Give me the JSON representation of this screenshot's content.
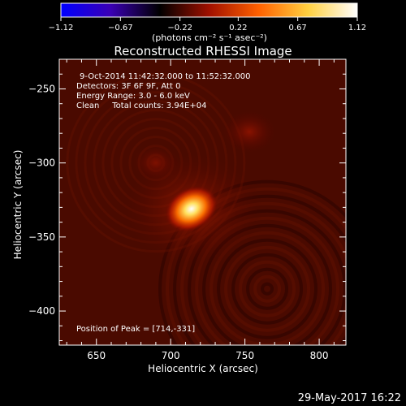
{
  "chart_data": {
    "type": "heatmap",
    "title": "Reconstructed RHESSI Image",
    "xlabel": "Heliocentric X (arcsec)",
    "ylabel": "Heliocentric Y (arcsec)",
    "xlim": [
      625,
      818
    ],
    "ylim": [
      -423,
      -230
    ],
    "xticks": [
      650,
      700,
      750,
      800
    ],
    "yticks": [
      -250,
      -300,
      -350,
      -400
    ],
    "colorbar": {
      "unit_label": "(photons cm⁻² s⁻¹ asec⁻²)",
      "range": [
        -1.12,
        1.12
      ],
      "ticks": [
        "-1.12",
        "-0.67",
        "-0.22",
        "0.22",
        "0.67",
        "1.12"
      ],
      "colors": [
        "#0000ff",
        "#3a00b5",
        "#000000",
        "#a01000",
        "#ff6000",
        "#ffd040",
        "#ffffff"
      ]
    },
    "annotations": [
      "9-Oct-2014 11:42:32.000 to 11:52:32.000",
      "Detectors: 3F 6F 9F, Att 0",
      "Energy Range: 3.0 - 6.0 keV",
      "Clean     Total counts: 3.94E+04"
    ],
    "peak_label": "Position of Peak = [714,-331]",
    "peak": {
      "x": 714,
      "y": -331,
      "value": 1.12
    },
    "secondary_sources": [
      {
        "x": 753,
        "y": -279,
        "value": 0.28
      },
      {
        "x": 690,
        "y": -300,
        "value": 0.18
      }
    ],
    "timestamp": "29-May-2017 16:22"
  }
}
